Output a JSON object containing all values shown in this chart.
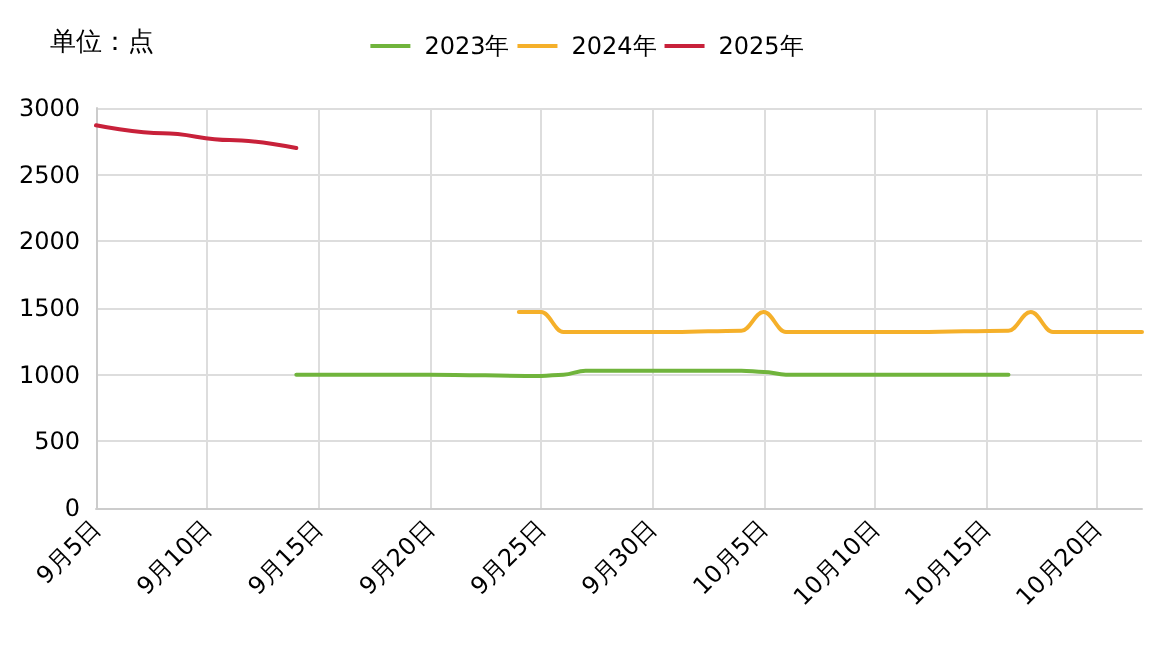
{
  "chart_data": {
    "type": "line",
    "ylabel": "单位：点",
    "xlim": [
      "--09-05",
      "--10-22"
    ],
    "xticks": [
      {
        "value": "--09-05",
        "label": "9月5日"
      },
      {
        "value": "--09-10",
        "label": "9月10日"
      },
      {
        "value": "--09-15",
        "label": "9月15日"
      },
      {
        "value": "--09-20",
        "label": "9月20日"
      },
      {
        "value": "--09-25",
        "label": "9月25日"
      },
      {
        "value": "--09-30",
        "label": "9月30日"
      },
      {
        "value": "--10-05",
        "label": "10月5日"
      },
      {
        "value": "--10-10",
        "label": "10月10日"
      },
      {
        "value": "--10-15",
        "label": "10月15日"
      },
      {
        "value": "--10-20",
        "label": "10月20日"
      }
    ],
    "ylim": [
      0,
      3000
    ],
    "yticks": [
      0,
      500,
      1000,
      1500,
      2000,
      2500,
      3000
    ],
    "grid": true,
    "legend": "top",
    "marker": "none",
    "line_style": "solid",
    "series": [
      {
        "name": "2023年",
        "color": "#70b43c",
        "x": [
          "--09-14",
          "--09-20",
          "--09-25",
          "--09-26",
          "--09-27",
          "--10-01",
          "--10-04",
          "--10-05",
          "--10-06",
          "--10-07",
          "--10-12",
          "--10-16"
        ],
        "values": [
          1000,
          1000,
          990,
          1000,
          1030,
          1030,
          1030,
          1020,
          1000,
          1000,
          1000,
          1000
        ]
      },
      {
        "name": "2024年",
        "color": "#f5b02a",
        "x": [
          "--09-24",
          "--09-25",
          "--09-26",
          "--09-27",
          "--10-01",
          "--10-04",
          "--10-05",
          "--10-06",
          "--10-07",
          "--10-12",
          "--10-16",
          "--10-17",
          "--10-18",
          "--10-22"
        ],
        "values": [
          1470,
          1470,
          1320,
          1320,
          1320,
          1330,
          1470,
          1320,
          1320,
          1320,
          1330,
          1470,
          1320,
          1320
        ]
      },
      {
        "name": "2025年",
        "color": "#c8213a",
        "x": [
          "--09-05",
          "--09-08",
          "--09-11",
          "--09-14"
        ],
        "values": [
          2870,
          2810,
          2760,
          2700
        ]
      }
    ]
  }
}
